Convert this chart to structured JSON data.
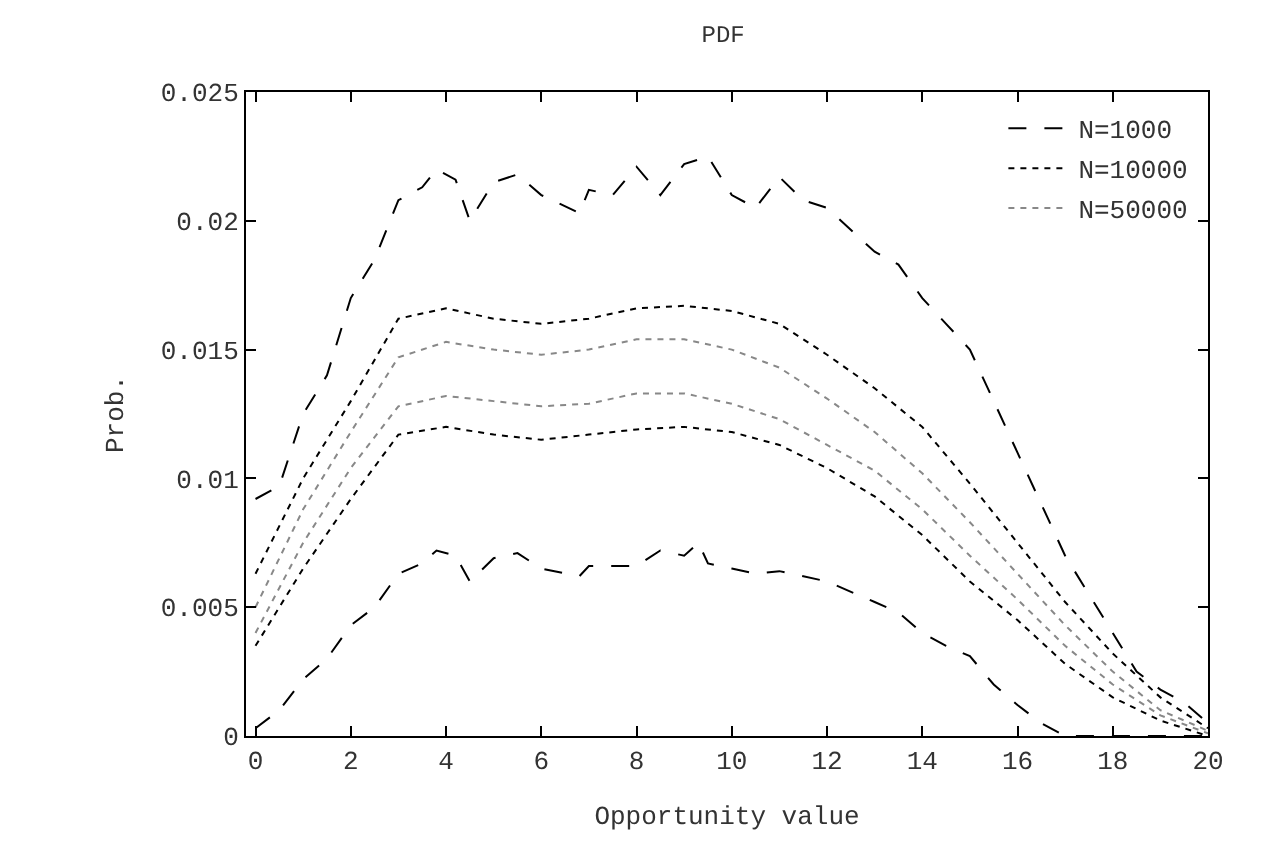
{
  "chart_data": {
    "type": "line",
    "title": "PDF",
    "xlabel": "Opportunity value",
    "ylabel": "Prob.",
    "xlim": [
      -0.2,
      20
    ],
    "xticks": [
      0,
      2,
      4,
      6,
      8,
      10,
      12,
      14,
      16,
      18,
      20
    ],
    "ylim": [
      0,
      0.025
    ],
    "yticks": [
      0,
      0.005,
      0.01,
      0.015,
      0.02,
      0.025
    ],
    "legend": "top right",
    "marker": "none",
    "series": [
      {
        "name": "N=1000",
        "color": "#000000",
        "line_style": "dashed",
        "x": [
          0,
          0.5,
          1,
          1.5,
          2,
          2.5,
          3,
          3.5,
          3.8,
          4.2,
          4.5,
          5,
          5.5,
          6,
          6.8,
          7,
          7.5,
          8,
          8.5,
          9,
          9.5,
          10,
          10.5,
          11,
          11.5,
          12,
          13,
          13.5,
          14,
          14.5,
          15,
          15.5,
          16,
          16.5,
          17,
          17.5,
          18,
          18.5,
          19,
          19.5,
          20
        ],
        "values": [
          0.0092,
          0.0097,
          0.0125,
          0.014,
          0.017,
          0.0185,
          0.0208,
          0.0213,
          0.022,
          0.0216,
          0.02,
          0.0215,
          0.0218,
          0.021,
          0.0203,
          0.0212,
          0.021,
          0.0221,
          0.021,
          0.0222,
          0.0225,
          0.021,
          0.0205,
          0.0217,
          0.0208,
          0.0205,
          0.0188,
          0.0183,
          0.017,
          0.016,
          0.015,
          0.013,
          0.011,
          0.009,
          0.007,
          0.0055,
          0.004,
          0.0025,
          0.0018,
          0.0013,
          0.0005
        ]
      },
      {
        "color": "#000000",
        "line_style": "dashed",
        "x": [
          0,
          0.5,
          1,
          1.5,
          2,
          2.5,
          3,
          3.5,
          3.8,
          4.2,
          4.5,
          5,
          5.5,
          6,
          6.8,
          7,
          8,
          8.5,
          9,
          9.3,
          9.5,
          10,
          10.5,
          11,
          12,
          13,
          13.5,
          14,
          14.5,
          15,
          15.5,
          16,
          16.5,
          17,
          20
        ],
        "values": [
          0.0003,
          0.001,
          0.0022,
          0.003,
          0.0043,
          0.005,
          0.0063,
          0.0067,
          0.0072,
          0.007,
          0.006,
          0.0069,
          0.0071,
          0.0065,
          0.0062,
          0.0066,
          0.0066,
          0.0072,
          0.007,
          0.0075,
          0.0067,
          0.0065,
          0.0063,
          0.0064,
          0.006,
          0.0052,
          0.0048,
          0.004,
          0.0035,
          0.0031,
          0.002,
          0.0012,
          0.0005,
          0,
          0
        ]
      },
      {
        "name": "N=10000",
        "color": "#000000",
        "line_style": "dotted",
        "x": [
          0,
          1,
          2,
          3,
          4,
          5,
          6,
          7,
          8,
          9,
          10,
          11,
          12,
          13,
          14,
          15,
          16,
          17,
          18,
          19,
          20
        ],
        "values": [
          0.0063,
          0.01,
          0.013,
          0.0162,
          0.0166,
          0.0162,
          0.016,
          0.0162,
          0.0166,
          0.0167,
          0.0165,
          0.016,
          0.0148,
          0.0135,
          0.012,
          0.0098,
          0.0075,
          0.0052,
          0.0032,
          0.0015,
          0.0003
        ]
      },
      {
        "color": "#000000",
        "line_style": "dotted",
        "x": [
          0,
          1,
          2,
          3,
          4,
          5,
          6,
          7,
          8,
          9,
          10,
          11,
          12,
          13,
          14,
          15,
          16,
          17,
          18,
          19,
          20
        ],
        "values": [
          0.0035,
          0.0065,
          0.0092,
          0.0117,
          0.012,
          0.0117,
          0.0115,
          0.0117,
          0.0119,
          0.012,
          0.0118,
          0.0113,
          0.0104,
          0.0093,
          0.0078,
          0.006,
          0.0045,
          0.0028,
          0.0015,
          0.0006,
          0
        ]
      },
      {
        "name": "N=50000",
        "color": "#888888",
        "line_style": "dotted",
        "x": [
          0,
          1,
          2,
          3,
          4,
          5,
          6,
          7,
          8,
          9,
          10,
          11,
          12,
          13,
          14,
          15,
          16,
          17,
          18,
          19,
          20
        ],
        "values": [
          0.005,
          0.0088,
          0.0118,
          0.0147,
          0.0153,
          0.015,
          0.0148,
          0.015,
          0.0154,
          0.0154,
          0.015,
          0.0143,
          0.0131,
          0.0118,
          0.0102,
          0.0083,
          0.0063,
          0.0043,
          0.0025,
          0.001,
          0.0002
        ]
      },
      {
        "color": "#888888",
        "line_style": "dotted",
        "x": [
          0,
          1,
          2,
          3,
          4,
          5,
          6,
          7,
          8,
          9,
          10,
          11,
          12,
          13,
          14,
          15,
          16,
          17,
          18,
          19,
          20
        ],
        "values": [
          0.004,
          0.0075,
          0.0104,
          0.0128,
          0.0132,
          0.013,
          0.0128,
          0.0129,
          0.0133,
          0.0133,
          0.0129,
          0.0123,
          0.0113,
          0.0103,
          0.0088,
          0.007,
          0.0053,
          0.0035,
          0.002,
          0.0008,
          0.0001
        ]
      }
    ]
  }
}
